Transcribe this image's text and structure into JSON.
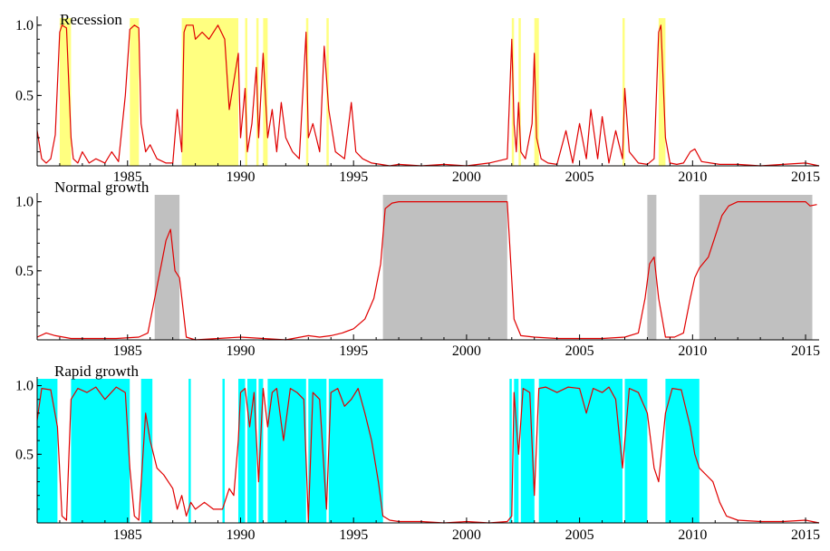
{
  "colors": {
    "probability_line": "#e00000",
    "recession_shade": "#ffff80",
    "normal_shade": "#c0c0c0",
    "rapid_shade": "#00ffff"
  },
  "chart_data": [
    {
      "type": "line",
      "title": "Recession",
      "xlim": [
        1981.0,
        2015.6
      ],
      "ylim": [
        0,
        1.05
      ],
      "x_ticks": [
        "1985",
        "1990",
        "1995",
        "2000",
        "2005",
        "2010",
        "2015"
      ],
      "y_ticks": [
        "0.5",
        "1.0"
      ],
      "shade_color_key": "recession_shade",
      "shaded_periods": [
        [
          1982.0,
          1982.5
        ],
        [
          1985.1,
          1985.5
        ],
        [
          1987.4,
          1989.9
        ],
        [
          1990.2,
          1990.3
        ],
        [
          1990.7,
          1990.8
        ],
        [
          1991.0,
          1991.2
        ],
        [
          1992.9,
          1993.0
        ],
        [
          1993.8,
          1993.9
        ],
        [
          2002.0,
          2002.1
        ],
        [
          2002.3,
          2002.4
        ],
        [
          2003.0,
          2003.2
        ],
        [
          2006.9,
          2007.0
        ],
        [
          2008.5,
          2008.8
        ]
      ],
      "series": [
        {
          "x": [
            1981.0,
            1981.2,
            1981.4,
            1981.6,
            1981.8,
            1982.0,
            1982.1,
            1982.3,
            1982.5,
            1982.6,
            1982.8,
            1983.0,
            1983.3,
            1983.6,
            1984.0,
            1984.3,
            1984.6,
            1984.9,
            1985.1,
            1985.3,
            1985.5,
            1985.6,
            1985.8,
            1986.0,
            1986.3,
            1986.7,
            1987.0,
            1987.2,
            1987.4,
            1987.5,
            1987.6,
            1987.9,
            1988.0,
            1988.3,
            1988.6,
            1989.0,
            1989.3,
            1989.5,
            1989.7,
            1989.9,
            1990.0,
            1990.2,
            1990.3,
            1990.5,
            1990.7,
            1990.8,
            1991.0,
            1991.2,
            1991.4,
            1991.6,
            1991.8,
            1992.0,
            1992.3,
            1992.6,
            1992.9,
            1993.0,
            1993.2,
            1993.5,
            1993.7,
            1993.9,
            1994.2,
            1994.6,
            1994.9,
            1995.1,
            1995.4,
            1995.8,
            1996.2,
            1996.6,
            1997.0,
            1998.0,
            1999.0,
            2000.0,
            2001.0,
            2001.8,
            2002.0,
            2002.1,
            2002.2,
            2002.3,
            2002.4,
            2002.6,
            2002.9,
            2003.0,
            2003.1,
            2003.3,
            2003.6,
            2004.0,
            2004.4,
            2004.7,
            2005.0,
            2005.3,
            2005.5,
            2005.8,
            2006.0,
            2006.3,
            2006.6,
            2006.9,
            2007.0,
            2007.2,
            2007.6,
            2008.0,
            2008.3,
            2008.5,
            2008.6,
            2008.8,
            2009.0,
            2009.3,
            2009.6,
            2009.9,
            2010.1,
            2010.4,
            2010.8,
            2011.2,
            2012.0,
            2013.0,
            2014.0,
            2015.0,
            2015.6
          ],
          "values": [
            0.25,
            0.05,
            0.02,
            0.05,
            0.22,
            0.95,
            1.0,
            0.98,
            0.2,
            0.05,
            0.02,
            0.1,
            0.02,
            0.05,
            0.02,
            0.1,
            0.03,
            0.5,
            0.97,
            1.0,
            0.98,
            0.3,
            0.1,
            0.15,
            0.05,
            0.02,
            0.02,
            0.4,
            0.1,
            0.95,
            1.0,
            1.0,
            0.9,
            0.95,
            0.9,
            1.0,
            0.9,
            0.4,
            0.6,
            0.8,
            0.2,
            0.55,
            0.1,
            0.3,
            0.7,
            0.2,
            0.8,
            0.2,
            0.4,
            0.1,
            0.45,
            0.2,
            0.1,
            0.05,
            0.95,
            0.2,
            0.3,
            0.1,
            0.85,
            0.4,
            0.1,
            0.05,
            0.45,
            0.1,
            0.05,
            0.02,
            0.01,
            0.0,
            0.01,
            0.0,
            0.01,
            0.0,
            0.02,
            0.05,
            0.9,
            0.3,
            0.1,
            0.45,
            0.1,
            0.05,
            0.3,
            0.8,
            0.2,
            0.05,
            0.02,
            0.01,
            0.25,
            0.02,
            0.3,
            0.05,
            0.4,
            0.05,
            0.35,
            0.02,
            0.25,
            0.05,
            0.55,
            0.1,
            0.02,
            0.01,
            0.05,
            0.95,
            1.0,
            0.2,
            0.02,
            0.01,
            0.02,
            0.1,
            0.12,
            0.03,
            0.02,
            0.01,
            0.01,
            0.0,
            0.01,
            0.02,
            0.0
          ]
        }
      ]
    },
    {
      "type": "line",
      "title": "Normal growth",
      "xlim": [
        1981.0,
        2015.6
      ],
      "ylim": [
        0,
        1.05
      ],
      "x_ticks": [
        "1985",
        "1990",
        "1995",
        "2000",
        "2005",
        "2010",
        "2015"
      ],
      "y_ticks": [
        "0.5",
        "1.0"
      ],
      "shade_color_key": "normal_shade",
      "shaded_periods": [
        [
          1986.2,
          1987.3
        ],
        [
          1996.3,
          2001.8
        ],
        [
          2008.0,
          2008.4
        ],
        [
          2010.3,
          2015.3
        ]
      ],
      "series": [
        {
          "x": [
            1981.0,
            1981.4,
            1981.8,
            1982.5,
            1983.5,
            1984.5,
            1985.5,
            1985.9,
            1986.2,
            1986.5,
            1986.7,
            1986.9,
            1987.1,
            1987.3,
            1987.6,
            1988.0,
            1989.0,
            1990.0,
            1991.0,
            1992.0,
            1993.0,
            1993.5,
            1994.0,
            1994.5,
            1995.0,
            1995.5,
            1995.9,
            1996.2,
            1996.4,
            1996.7,
            1997.0,
            1998.0,
            1999.0,
            2000.0,
            2001.0,
            2001.8,
            2002.1,
            2002.4,
            2003.0,
            2004.0,
            2005.0,
            2006.0,
            2007.0,
            2007.6,
            2007.9,
            2008.1,
            2008.3,
            2008.5,
            2008.8,
            2009.2,
            2009.6,
            2009.9,
            2010.1,
            2010.3,
            2010.7,
            2011.0,
            2011.3,
            2011.6,
            2012.0,
            2013.0,
            2014.0,
            2015.0,
            2015.2,
            2015.5
          ],
          "values": [
            0.02,
            0.05,
            0.03,
            0.01,
            0.01,
            0.01,
            0.02,
            0.05,
            0.3,
            0.55,
            0.72,
            0.8,
            0.5,
            0.45,
            0.02,
            0.0,
            0.01,
            0.02,
            0.01,
            0.0,
            0.03,
            0.02,
            0.03,
            0.05,
            0.08,
            0.15,
            0.3,
            0.55,
            0.95,
            0.99,
            1.0,
            1.0,
            1.0,
            1.0,
            1.0,
            1.0,
            0.15,
            0.03,
            0.02,
            0.01,
            0.01,
            0.01,
            0.02,
            0.05,
            0.3,
            0.55,
            0.6,
            0.3,
            0.02,
            0.02,
            0.05,
            0.3,
            0.45,
            0.52,
            0.6,
            0.75,
            0.9,
            0.97,
            1.0,
            1.0,
            1.0,
            1.0,
            0.97,
            0.98
          ]
        }
      ]
    },
    {
      "type": "line",
      "title": "Rapid growth",
      "xlim": [
        1981.0,
        2015.6
      ],
      "ylim": [
        0,
        1.05
      ],
      "x_ticks": [
        "1985",
        "1990",
        "1995",
        "2000",
        "2005",
        "2010",
        "2015"
      ],
      "y_ticks": [
        "0.5",
        "1.0"
      ],
      "shade_color_key": "rapid_shade",
      "shaded_periods": [
        [
          1981.0,
          1981.9
        ],
        [
          1982.5,
          1985.1
        ],
        [
          1985.6,
          1986.1
        ],
        [
          1987.7,
          1987.8
        ],
        [
          1989.2,
          1989.3
        ],
        [
          1989.9,
          1990.2
        ],
        [
          1990.3,
          1990.7
        ],
        [
          1990.8,
          1991.0
        ],
        [
          1991.2,
          1992.9
        ],
        [
          1993.0,
          1993.8
        ],
        [
          1993.9,
          1996.3
        ],
        [
          2001.9,
          2002.0
        ],
        [
          2002.1,
          2002.3
        ],
        [
          2002.4,
          2003.0
        ],
        [
          2003.2,
          2006.9
        ],
        [
          2007.0,
          2008.0
        ],
        [
          2008.8,
          2010.3
        ]
      ],
      "series": [
        {
          "x": [
            1981.0,
            1981.2,
            1981.6,
            1981.9,
            1982.1,
            1982.3,
            1982.5,
            1982.8,
            1983.2,
            1983.6,
            1984.0,
            1984.5,
            1984.9,
            1985.1,
            1985.3,
            1985.5,
            1985.8,
            1986.0,
            1986.3,
            1986.6,
            1987.0,
            1987.2,
            1987.4,
            1987.6,
            1987.8,
            1988.0,
            1988.4,
            1988.8,
            1989.2,
            1989.5,
            1989.7,
            1989.9,
            1990.0,
            1990.2,
            1990.4,
            1990.6,
            1990.8,
            1991.0,
            1991.2,
            1991.4,
            1991.6,
            1991.9,
            1992.2,
            1992.5,
            1992.8,
            1993.0,
            1993.2,
            1993.5,
            1993.8,
            1994.0,
            1994.3,
            1994.6,
            1994.9,
            1995.2,
            1995.5,
            1995.8,
            1996.1,
            1996.3,
            1996.6,
            1997.0,
            1998.0,
            1999.0,
            2000.0,
            2001.0,
            2001.8,
            2002.0,
            2002.1,
            2002.3,
            2002.5,
            2002.8,
            2003.0,
            2003.2,
            2003.5,
            2004.0,
            2004.5,
            2005.0,
            2005.3,
            2005.6,
            2006.0,
            2006.3,
            2006.6,
            2006.9,
            2007.2,
            2007.6,
            2008.0,
            2008.3,
            2008.5,
            2008.8,
            2009.1,
            2009.5,
            2009.9,
            2010.1,
            2010.3,
            2010.6,
            2010.9,
            2011.2,
            2011.5,
            2012.0,
            2013.0,
            2014.0,
            2015.0,
            2015.6
          ],
          "values": [
            0.75,
            0.98,
            0.97,
            0.7,
            0.05,
            0.02,
            0.9,
            0.98,
            0.95,
            0.99,
            0.9,
            0.99,
            0.95,
            0.4,
            0.05,
            0.02,
            0.8,
            0.6,
            0.4,
            0.35,
            0.25,
            0.1,
            0.2,
            0.05,
            0.15,
            0.1,
            0.15,
            0.1,
            0.1,
            0.25,
            0.2,
            0.6,
            0.95,
            0.98,
            0.7,
            0.95,
            0.3,
            0.98,
            0.7,
            0.95,
            0.98,
            0.6,
            0.98,
            0.95,
            0.9,
            0.02,
            0.95,
            0.9,
            0.1,
            0.95,
            0.98,
            0.85,
            0.9,
            0.98,
            0.8,
            0.6,
            0.3,
            0.05,
            0.02,
            0.01,
            0.01,
            0.0,
            0.01,
            0.0,
            0.01,
            0.05,
            0.95,
            0.5,
            0.98,
            0.95,
            0.2,
            0.98,
            0.99,
            0.95,
            0.99,
            0.98,
            0.8,
            0.98,
            0.95,
            0.99,
            0.9,
            0.4,
            0.98,
            0.95,
            0.8,
            0.4,
            0.3,
            0.8,
            0.98,
            0.97,
            0.7,
            0.5,
            0.4,
            0.35,
            0.3,
            0.15,
            0.05,
            0.02,
            0.01,
            0.01,
            0.02,
            0.0
          ]
        }
      ]
    }
  ]
}
